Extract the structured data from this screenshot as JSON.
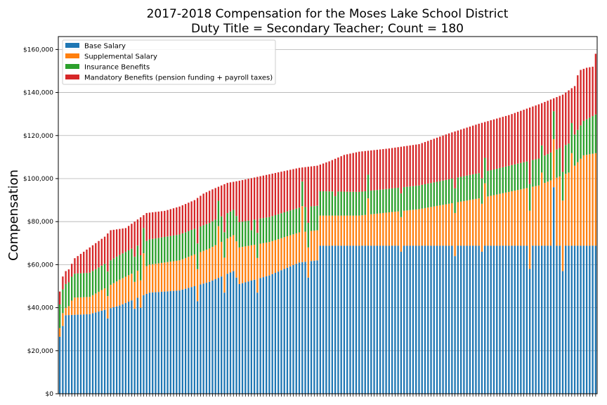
{
  "chart_data": {
    "type": "bar",
    "stacked": true,
    "title": "2017-2018 Compensation for the Moses Lake School District",
    "subtitle": "Duty Title = Secondary Teacher; Count = 180",
    "xlabel": "",
    "ylabel": "Compensation",
    "ylim": [
      0,
      166000
    ],
    "yticks": [
      0,
      20000,
      40000,
      60000,
      80000,
      100000,
      120000,
      140000,
      160000
    ],
    "ytick_labels": [
      "$0",
      "$20,000",
      "$40,000",
      "$60,000",
      "$80,000",
      "$100,000",
      "$120,000",
      "$140,000",
      "$160,000"
    ],
    "grid": "horizontal",
    "legend_position": "top-left",
    "count": 180,
    "series": [
      {
        "name": "Base Salary",
        "color": "#1f77b4"
      },
      {
        "name": "Supplemental Salary",
        "color": "#ff7f0e"
      },
      {
        "name": "Insurance Benefits",
        "color": "#2ca02c"
      },
      {
        "name": "Mandatory Benefits (pension funding + payroll taxes)",
        "color": "#d62728"
      }
    ],
    "totals_anchors": [
      [
        0,
        47500
      ],
      [
        1,
        54500
      ],
      [
        2,
        57000
      ],
      [
        3,
        57800
      ],
      [
        5,
        63000
      ],
      [
        10,
        68000
      ],
      [
        15,
        73000
      ],
      [
        17,
        76000
      ],
      [
        22,
        77000
      ],
      [
        26,
        81000
      ],
      [
        29,
        84000
      ],
      [
        35,
        85000
      ],
      [
        40,
        87000
      ],
      [
        45,
        90000
      ],
      [
        48,
        93000
      ],
      [
        51,
        95000
      ],
      [
        56,
        98000
      ],
      [
        60,
        99000
      ],
      [
        70,
        102000
      ],
      [
        80,
        105000
      ],
      [
        86,
        106000
      ],
      [
        90,
        108000
      ],
      [
        95,
        111000
      ],
      [
        100,
        112500
      ],
      [
        110,
        114000
      ],
      [
        120,
        116000
      ],
      [
        130,
        121000
      ],
      [
        140,
        125500
      ],
      [
        150,
        129500
      ],
      [
        160,
        134500
      ],
      [
        168,
        139000
      ],
      [
        172,
        143000
      ],
      [
        173,
        148000
      ],
      [
        174,
        150500
      ],
      [
        176,
        151500
      ],
      [
        178,
        152000
      ],
      [
        179,
        158000
      ]
    ],
    "base_anchors": [
      [
        0,
        26500
      ],
      [
        2,
        36500
      ],
      [
        10,
        37000
      ],
      [
        20,
        41000
      ],
      [
        30,
        47000
      ],
      [
        40,
        48000
      ],
      [
        50,
        52000
      ],
      [
        58,
        57000
      ],
      [
        60,
        51000
      ],
      [
        70,
        55000
      ],
      [
        80,
        61000
      ],
      [
        86,
        62000
      ],
      [
        87,
        68800
      ],
      [
        179,
        68800
      ]
    ],
    "supplemental_anchors": [
      [
        0,
        8000
      ],
      [
        10,
        8000
      ],
      [
        20,
        12000
      ],
      [
        40,
        14000
      ],
      [
        60,
        17000
      ],
      [
        80,
        14000
      ],
      [
        100,
        14000
      ],
      [
        120,
        17000
      ],
      [
        140,
        22000
      ],
      [
        160,
        28000
      ],
      [
        170,
        34000
      ],
      [
        175,
        42000
      ],
      [
        179,
        43000
      ]
    ],
    "insurance_anchors": [
      [
        0,
        11000
      ],
      [
        40,
        12000
      ],
      [
        80,
        11500
      ],
      [
        100,
        11000
      ],
      [
        120,
        11000
      ],
      [
        160,
        12500
      ],
      [
        170,
        13500
      ],
      [
        179,
        18000
      ]
    ],
    "base_dips": [
      [
        16,
        35000
      ],
      [
        25,
        39500
      ],
      [
        27,
        40000
      ],
      [
        46,
        43000
      ],
      [
        55,
        47000
      ],
      [
        66,
        47000
      ],
      [
        83,
        54000
      ],
      [
        114,
        66000
      ],
      [
        132,
        64000
      ],
      [
        141,
        66000
      ],
      [
        157,
        58000
      ],
      [
        165,
        96000
      ],
      [
        168,
        57000
      ]
    ],
    "supplemental_spikes": [
      [
        28,
        24000
      ],
      [
        53,
        24000
      ],
      [
        81,
        26000
      ],
      [
        103,
        22000
      ],
      [
        142,
        29000
      ],
      [
        161,
        34000
      ],
      [
        171,
        43000
      ]
    ],
    "insurance_dips": [
      [
        64,
        7000
      ],
      [
        92,
        9000
      ]
    ]
  }
}
